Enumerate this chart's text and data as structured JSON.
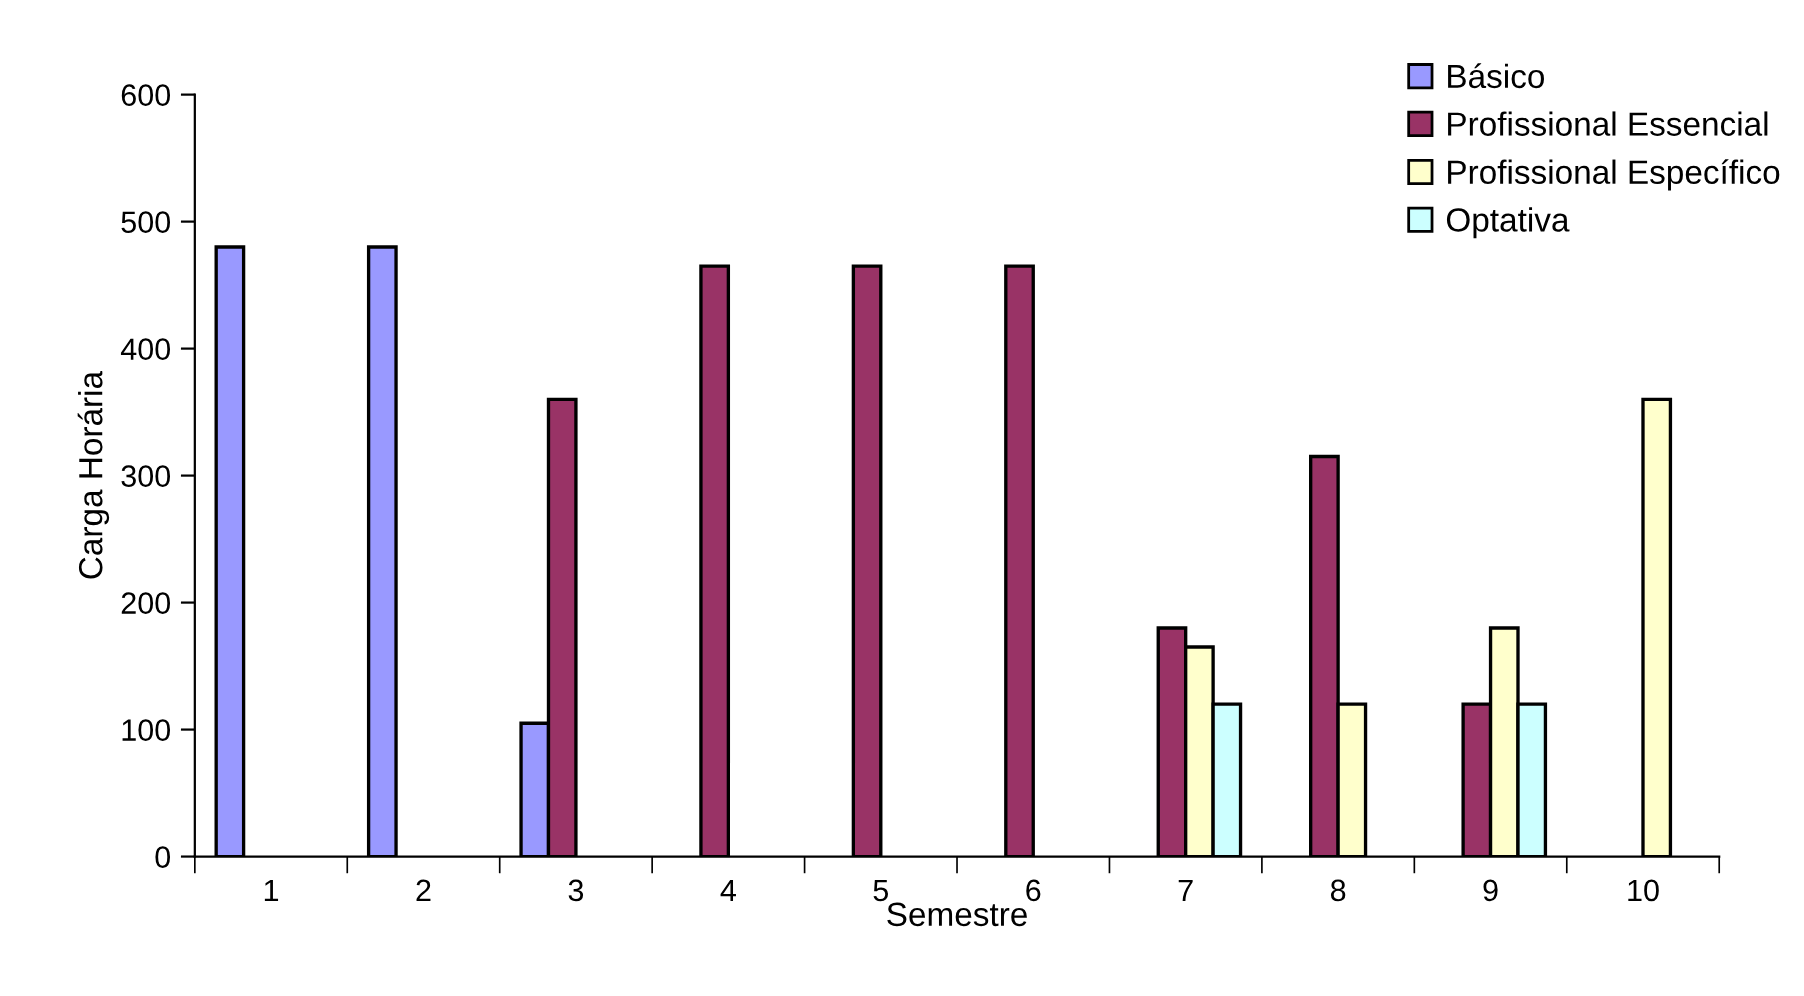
{
  "chart_data": {
    "type": "bar",
    "xlabel": "Semestre",
    "ylabel": "Carga Horária",
    "categories": [
      "1",
      "2",
      "3",
      "4",
      "5",
      "6",
      "7",
      "8",
      "9",
      "10"
    ],
    "series": [
      {
        "name": "Básico",
        "color": "#9999ff",
        "values": [
          480,
          480,
          105,
          null,
          null,
          null,
          null,
          null,
          null,
          null
        ]
      },
      {
        "name": "Profissional Essencial",
        "color": "#993366",
        "values": [
          null,
          null,
          360,
          465,
          465,
          465,
          180,
          315,
          120,
          null
        ]
      },
      {
        "name": "Profissional Específico",
        "color": "#ffffcc",
        "values": [
          null,
          null,
          null,
          null,
          null,
          null,
          165,
          120,
          180,
          360
        ]
      },
      {
        "name": "Optativa",
        "color": "#ccffff",
        "values": [
          null,
          null,
          null,
          null,
          null,
          null,
          120,
          null,
          120,
          null
        ]
      }
    ],
    "ylim": [
      0,
      600
    ],
    "yticks": [
      0,
      100,
      200,
      300,
      400,
      500,
      600
    ],
    "grid": false,
    "legend": "top right"
  }
}
